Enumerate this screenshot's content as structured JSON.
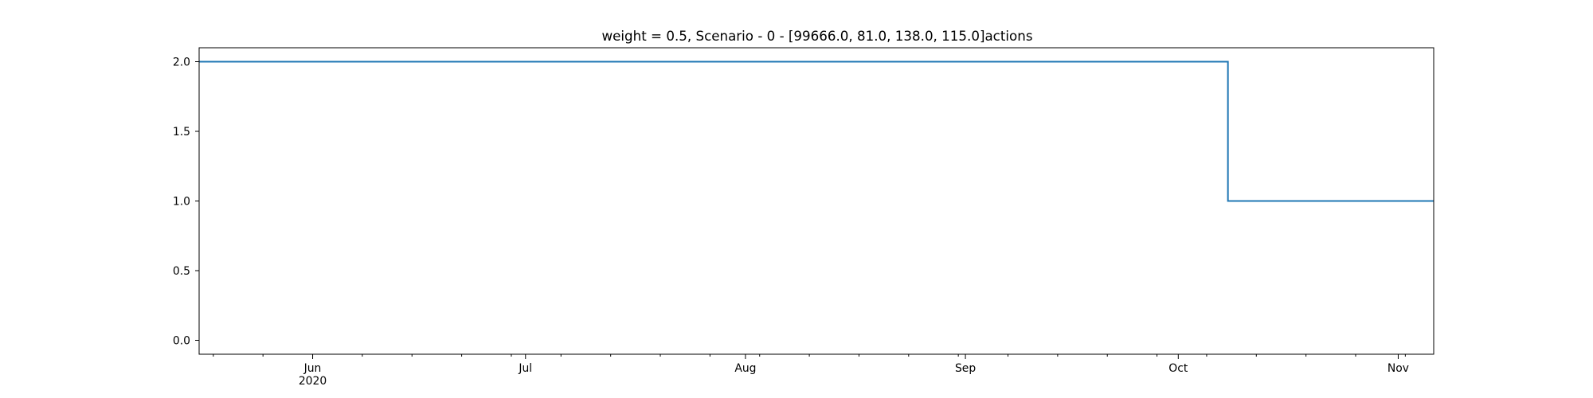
{
  "chart_data": {
    "type": "line",
    "drawstyle": "steps-post",
    "title": "weight = 0.5, Scenario - 0 - [99666.0, 81.0, 138.0, 115.0]actions",
    "xlabel": "",
    "ylabel": "",
    "x_axis_kind": "date",
    "xlim": [
      "2020-05-16",
      "2020-11-06"
    ],
    "ylim": [
      -0.1,
      2.1
    ],
    "y_ticks": [
      0.0,
      0.5,
      1.0,
      1.5,
      2.0
    ],
    "y_tick_labels": [
      "0.0",
      "0.5",
      "1.0",
      "1.5",
      "2.0"
    ],
    "x_ticks": [
      {
        "date": "2020-06-01",
        "label": "Jun",
        "sublabel": "2020"
      },
      {
        "date": "2020-07-01",
        "label": "Jul",
        "sublabel": ""
      },
      {
        "date": "2020-08-01",
        "label": "Aug",
        "sublabel": ""
      },
      {
        "date": "2020-09-01",
        "label": "Sep",
        "sublabel": ""
      },
      {
        "date": "2020-10-01",
        "label": "Oct",
        "sublabel": ""
      },
      {
        "date": "2020-11-01",
        "label": "Nov",
        "sublabel": ""
      }
    ],
    "grid": false,
    "legend": "none",
    "series": [
      {
        "color": "#1f77b4",
        "points": [
          {
            "x": "2020-05-16",
            "y": 2.0
          },
          {
            "x": "2020-10-08",
            "y": 1.0
          },
          {
            "x": "2020-11-06",
            "y": 1.0
          }
        ]
      }
    ]
  }
}
